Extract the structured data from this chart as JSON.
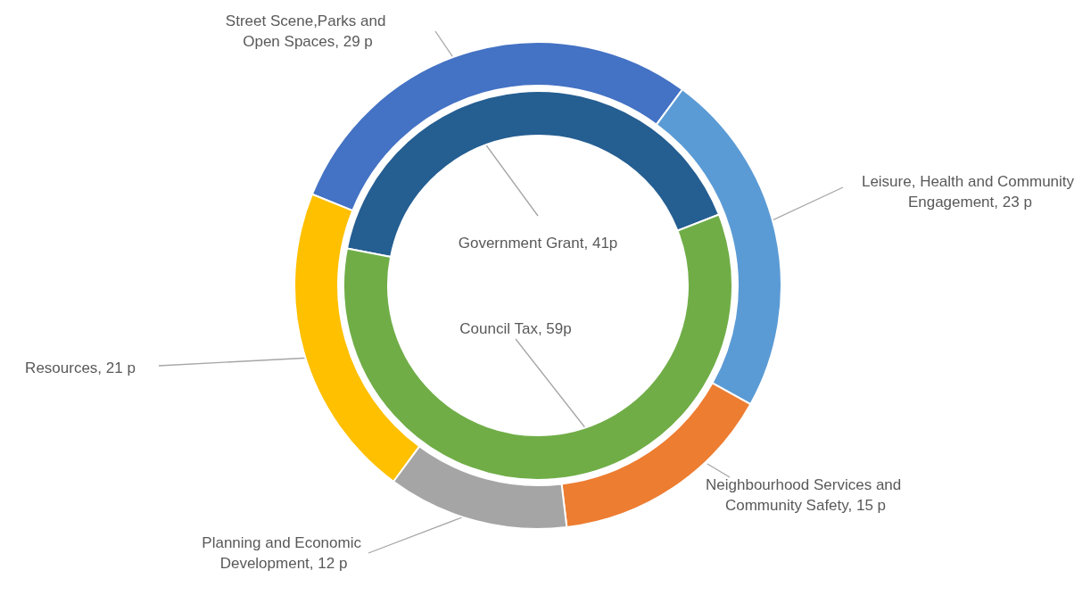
{
  "chart_data": [
    {
      "type": "donut",
      "categories": [
        "Street Scene,Parks and Open Spaces",
        "Leisure, Health and Community Engagement",
        "Neighbourhood Services and Community Safety",
        "Planning and Economic Development",
        "Resources"
      ],
      "values": [
        29,
        23,
        15,
        12,
        21
      ],
      "value_labels": [
        "29 p",
        "23 p",
        "15 p",
        "12 p",
        "21 p"
      ],
      "colors": [
        "#4472c4",
        "#5b9bd5",
        "#ed7d31",
        "#a5a5a5",
        "#ffc000"
      ]
    },
    {
      "type": "donut",
      "categories": [
        "Government Grant",
        "Council Tax"
      ],
      "values": [
        41,
        59
      ],
      "value_labels": [
        "41p",
        "59p"
      ],
      "colors": [
        "#255e91",
        "#70ad47"
      ]
    }
  ]
}
